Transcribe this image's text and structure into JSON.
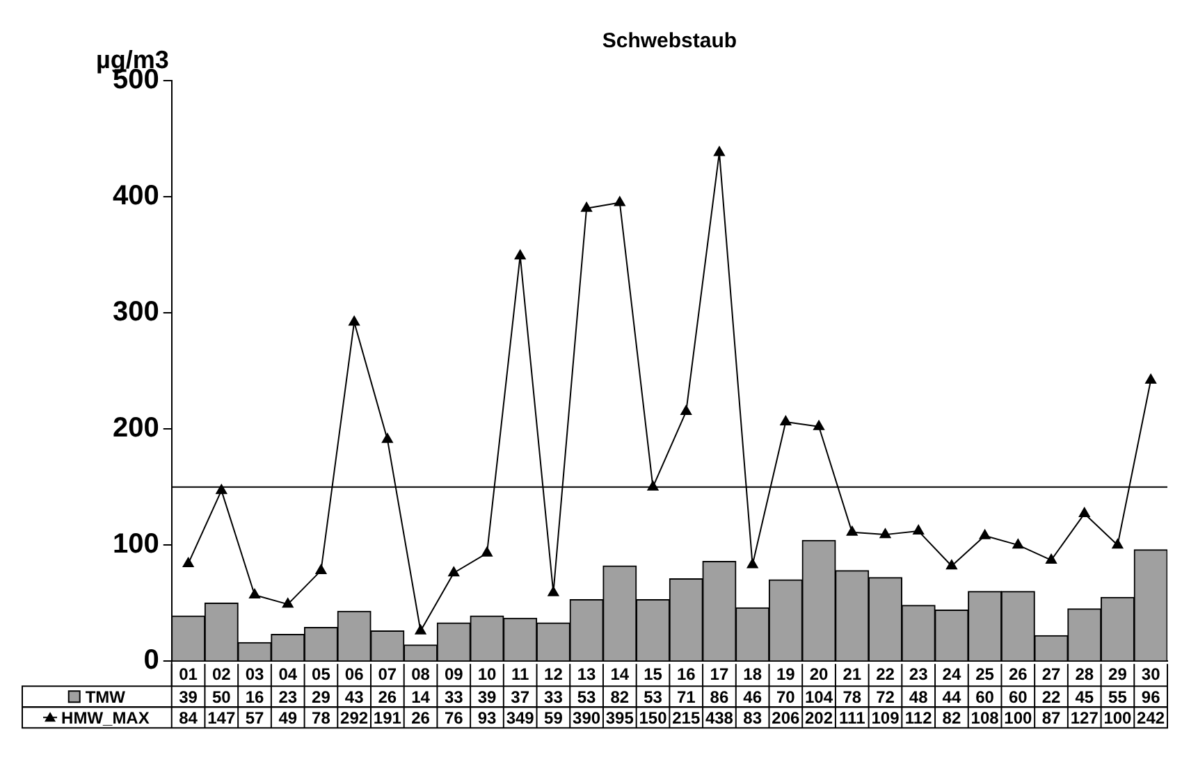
{
  "chart_data": {
    "type": "bar",
    "title": "Schwebstaub",
    "ylabel": "µg/m3",
    "categories": [
      "01",
      "02",
      "03",
      "04",
      "05",
      "06",
      "07",
      "08",
      "09",
      "10",
      "11",
      "12",
      "13",
      "14",
      "15",
      "16",
      "17",
      "18",
      "19",
      "20",
      "21",
      "22",
      "23",
      "24",
      "25",
      "26",
      "27",
      "28",
      "29",
      "30"
    ],
    "series": [
      {
        "name": "TMW",
        "color": "#a0a0a0",
        "values": [
          39,
          50,
          16,
          23,
          29,
          43,
          26,
          14,
          33,
          39,
          37,
          33,
          53,
          82,
          53,
          71,
          86,
          46,
          70,
          104,
          78,
          72,
          48,
          44,
          60,
          60,
          22,
          45,
          55,
          96
        ]
      },
      {
        "name": "HMW_MAX",
        "type": "line",
        "color": "#000000",
        "values": [
          84,
          147,
          57,
          49,
          78,
          292,
          191,
          26,
          76,
          93,
          349,
          59,
          390,
          395,
          150,
          215,
          438,
          83,
          206,
          202,
          111,
          109,
          112,
          82,
          108,
          100,
          87,
          127,
          100,
          242
        ]
      }
    ],
    "ylim": [
      0,
      500
    ],
    "yticks": [
      0,
      100,
      200,
      300,
      400,
      500
    ],
    "ref_lines": [
      {
        "axis": "y",
        "value": 150,
        "color": "#000000"
      }
    ],
    "marker": "triangle",
    "line_style": "solid",
    "grid": false,
    "legend": "bottom",
    "data_labels": true
  }
}
